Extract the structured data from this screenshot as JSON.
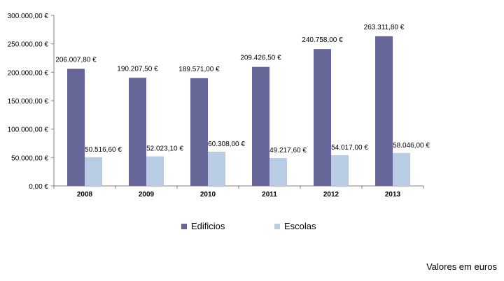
{
  "chart_data": {
    "type": "bar",
    "categories": [
      "2008",
      "2009",
      "2010",
      "2011",
      "2012",
      "2013"
    ],
    "series": [
      {
        "name": "Edificios",
        "color": "#666699",
        "values": [
          206007.8,
          190207.5,
          189571.0,
          209426.5,
          240758.0,
          263311.8
        ],
        "labels": [
          "206.007,80 €",
          "190.207,50 €",
          "189.571,00 €",
          "209.426,50 €",
          "240.758,00 €",
          "263.311,80 €"
        ]
      },
      {
        "name": "Escolas",
        "color": "#b8cce4",
        "values": [
          50516.6,
          52023.1,
          60308.0,
          49217.6,
          54017.0,
          58046.0
        ],
        "labels": [
          "50.516,60 €",
          "52.023,10 €",
          "60.308,00 €",
          "49.217,60 €",
          "54.017,00 €",
          "58.046,00 €"
        ]
      }
    ],
    "ylim": [
      0,
      300000
    ],
    "yticks": [
      {
        "value": 0,
        "label": "0,00 €"
      },
      {
        "value": 50000,
        "label": "50.000,00 €"
      },
      {
        "value": 100000,
        "label": "100.000,00 €"
      },
      {
        "value": 150000,
        "label": "150.000,00 €"
      },
      {
        "value": 200000,
        "label": "200.000,00 €"
      },
      {
        "value": 250000,
        "label": "250.000,00 €"
      },
      {
        "value": 300000,
        "label": "300.000,00 €"
      }
    ],
    "grid": false,
    "legend": "bottom",
    "title": "",
    "xlabel": "",
    "ylabel": ""
  },
  "footnote": "Valores em euros"
}
